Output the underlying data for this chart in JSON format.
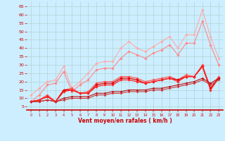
{
  "xlabel": "Vent moyen/en rafales ( km/h )",
  "background_color": "#cceeff",
  "grid_color": "#aacccc",
  "x": [
    0,
    1,
    2,
    3,
    4,
    5,
    6,
    7,
    8,
    9,
    10,
    11,
    12,
    13,
    14,
    15,
    16,
    17,
    18,
    19,
    20,
    21,
    22,
    23
  ],
  "lines": [
    {
      "color": "#ffaaaa",
      "linewidth": 0.8,
      "marker": "D",
      "markersize": 1.8,
      "y": [
        12,
        16,
        20,
        21,
        29,
        16,
        20,
        25,
        31,
        32,
        32,
        40,
        44,
        40,
        38,
        41,
        44,
        47,
        40,
        48,
        48,
        63,
        47,
        34
      ]
    },
    {
      "color": "#ff8888",
      "linewidth": 0.8,
      "marker": "D",
      "markersize": 1.8,
      "y": [
        8,
        12,
        18,
        19,
        26,
        14,
        18,
        21,
        27,
        28,
        28,
        34,
        38,
        36,
        34,
        37,
        39,
        42,
        36,
        43,
        43,
        56,
        42,
        30
      ]
    },
    {
      "color": "#ff5555",
      "linewidth": 0.9,
      "marker": "D",
      "markersize": 1.8,
      "y": [
        8,
        9,
        12,
        8,
        15,
        16,
        13,
        14,
        19,
        20,
        20,
        23,
        23,
        22,
        20,
        21,
        22,
        23,
        21,
        24,
        23,
        30,
        16,
        23
      ]
    },
    {
      "color": "#dd0000",
      "linewidth": 0.9,
      "marker": "D",
      "markersize": 1.8,
      "y": [
        8,
        9,
        11,
        8,
        15,
        15,
        13,
        13,
        18,
        19,
        19,
        22,
        22,
        21,
        19,
        20,
        21,
        22,
        21,
        23,
        23,
        29,
        16,
        22
      ]
    },
    {
      "color": "#ff2222",
      "linewidth": 0.9,
      "marker": "D",
      "markersize": 1.8,
      "y": [
        8,
        9,
        11,
        8,
        14,
        15,
        13,
        13,
        17,
        18,
        18,
        21,
        21,
        20,
        19,
        20,
        21,
        22,
        20,
        23,
        23,
        29,
        15,
        22
      ]
    },
    {
      "color": "#bb1111",
      "linewidth": 0.8,
      "marker": "D",
      "markersize": 1.5,
      "y": [
        8,
        8,
        9,
        8,
        10,
        11,
        11,
        11,
        13,
        13,
        14,
        14,
        15,
        15,
        15,
        16,
        16,
        17,
        18,
        19,
        20,
        22,
        19,
        22
      ]
    },
    {
      "color": "#cc3333",
      "linewidth": 0.8,
      "marker": "D",
      "markersize": 1.5,
      "y": [
        8,
        8,
        9,
        8,
        9,
        10,
        10,
        10,
        12,
        12,
        13,
        13,
        14,
        14,
        14,
        15,
        15,
        16,
        17,
        18,
        19,
        21,
        18,
        21
      ]
    }
  ],
  "yticks": [
    5,
    10,
    15,
    20,
    25,
    30,
    35,
    40,
    45,
    50,
    55,
    60,
    65
  ],
  "ylim": [
    3,
    68
  ],
  "xlim": [
    -0.5,
    23.5
  ],
  "xtick_labels": [
    "0",
    "1",
    "2",
    "3",
    "4",
    "5",
    "6",
    "7",
    "8",
    "9",
    "10",
    "11",
    "12",
    "13",
    "14",
    "15",
    "16",
    "17",
    "18",
    "19",
    "20",
    "21",
    "22",
    "23"
  ]
}
